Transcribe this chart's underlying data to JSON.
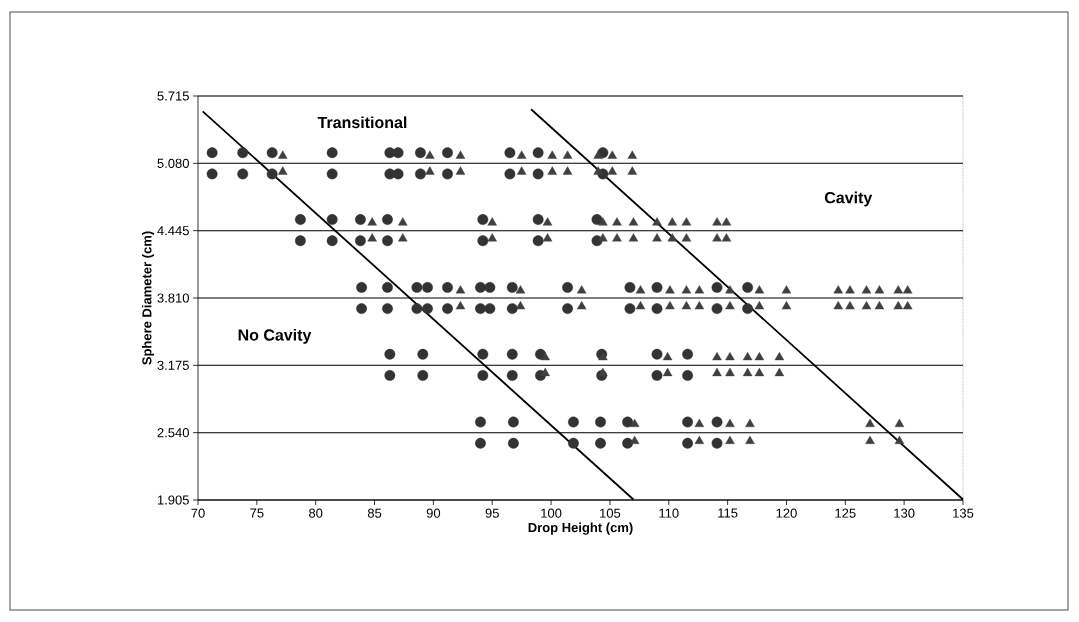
{
  "chart_data": {
    "type": "scatter",
    "xlabel": "Drop Height (cm)",
    "ylabel": "Sphere Diameter (cm)",
    "xlim": [
      70,
      135
    ],
    "xticks": [
      70,
      75,
      80,
      85,
      90,
      95,
      100,
      105,
      110,
      115,
      120,
      125,
      130,
      135
    ],
    "ylim": [
      1.905,
      5.715
    ],
    "yticks": [
      1.905,
      {
        "value": 2.54,
        "label": "2.540"
      },
      3.175,
      {
        "value": 3.81,
        "label": "3.810"
      },
      4.445,
      {
        "value": 5.08,
        "label": "5.080"
      },
      5.715
    ],
    "grid": "y",
    "series": [
      {
        "marker": "circle",
        "color": "#333333",
        "x": [
          71.2,
          71.2,
          73.8,
          73.8,
          76.3,
          76.3,
          81.4,
          81.4,
          86.3,
          86.3,
          87.0,
          87.0,
          88.9,
          88.9,
          91.2,
          91.2,
          96.5,
          96.5,
          98.9,
          98.9,
          104.4,
          104.4,
          78.7,
          78.7,
          81.4,
          81.4,
          83.8,
          83.8,
          86.1,
          86.1,
          94.2,
          94.2,
          98.9,
          98.9,
          103.9,
          103.9,
          83.9,
          83.9,
          86.1,
          86.1,
          88.6,
          88.6,
          89.5,
          89.5,
          91.2,
          91.2,
          94.0,
          94.0,
          94.8,
          94.8,
          96.7,
          96.7,
          101.4,
          101.4,
          106.7,
          106.7,
          109.0,
          109.0,
          114.1,
          114.1,
          116.7,
          116.7,
          86.3,
          86.3,
          89.1,
          89.1,
          94.2,
          94.2,
          96.7,
          96.7,
          99.1,
          99.1,
          104.3,
          104.3,
          109.0,
          109.0,
          111.6,
          111.6,
          94.0,
          94.0,
          96.8,
          96.8,
          101.9,
          101.9,
          104.2,
          104.2,
          106.5,
          106.5,
          111.6,
          111.6,
          114.1,
          114.1
        ],
        "values": [
          5.18,
          4.98,
          5.18,
          4.98,
          5.18,
          4.98,
          5.18,
          4.98,
          5.18,
          4.98,
          5.18,
          4.98,
          5.18,
          4.98,
          5.18,
          4.98,
          5.18,
          4.98,
          5.18,
          4.98,
          5.18,
          4.98,
          4.55,
          4.35,
          4.55,
          4.35,
          4.55,
          4.35,
          4.55,
          4.35,
          4.55,
          4.35,
          4.55,
          4.35,
          4.55,
          4.35,
          3.91,
          3.71,
          3.91,
          3.71,
          3.91,
          3.71,
          3.91,
          3.71,
          3.91,
          3.71,
          3.91,
          3.71,
          3.91,
          3.71,
          3.91,
          3.71,
          3.91,
          3.71,
          3.91,
          3.71,
          3.91,
          3.71,
          3.91,
          3.71,
          3.91,
          3.71,
          3.28,
          3.08,
          3.28,
          3.08,
          3.28,
          3.08,
          3.28,
          3.08,
          3.28,
          3.08,
          3.28,
          3.08,
          3.28,
          3.08,
          3.28,
          3.08,
          2.64,
          2.44,
          2.64,
          2.44,
          2.64,
          2.44,
          2.64,
          2.44,
          2.64,
          2.44,
          2.64,
          2.44,
          2.64,
          2.44
        ]
      },
      {
        "marker": "triangle",
        "color": "#404040",
        "x": [
          77.2,
          77.2,
          89.7,
          89.7,
          92.3,
          92.3,
          97.5,
          97.5,
          100.1,
          100.1,
          101.4,
          101.4,
          104.0,
          104.0,
          105.2,
          105.2,
          106.9,
          106.9,
          84.8,
          84.8,
          87.4,
          87.4,
          95.0,
          95.0,
          99.7,
          99.7,
          104.4,
          104.4,
          105.6,
          105.6,
          107.0,
          107.0,
          109.0,
          109.0,
          110.3,
          110.3,
          111.5,
          111.5,
          114.1,
          114.1,
          114.9,
          114.9,
          92.3,
          92.3,
          97.4,
          97.4,
          102.6,
          102.6,
          107.6,
          107.6,
          110.1,
          110.1,
          111.5,
          111.5,
          112.6,
          112.6,
          115.2,
          115.2,
          117.7,
          117.7,
          120.0,
          120.0,
          124.4,
          124.4,
          125.4,
          125.4,
          126.8,
          126.8,
          127.9,
          127.9,
          129.5,
          129.5,
          130.3,
          130.3,
          99.5,
          99.5,
          104.4,
          104.4,
          109.9,
          109.9,
          114.1,
          114.1,
          115.2,
          115.2,
          116.7,
          116.7,
          117.7,
          117.7,
          119.4,
          119.4,
          107.1,
          107.1,
          112.6,
          112.6,
          115.2,
          115.2,
          116.9,
          116.9,
          127.1,
          127.1,
          129.6,
          129.6
        ],
        "values": [
          5.15,
          5.0,
          5.15,
          5.0,
          5.15,
          5.0,
          5.15,
          5.0,
          5.15,
          5.0,
          5.15,
          5.0,
          5.15,
          5.0,
          5.15,
          5.0,
          5.15,
          5.0,
          4.52,
          4.37,
          4.52,
          4.37,
          4.52,
          4.37,
          4.52,
          4.37,
          4.52,
          4.37,
          4.52,
          4.37,
          4.52,
          4.37,
          4.52,
          4.37,
          4.52,
          4.37,
          4.52,
          4.37,
          4.52,
          4.37,
          4.52,
          4.37,
          3.88,
          3.73,
          3.88,
          3.73,
          3.88,
          3.73,
          3.88,
          3.73,
          3.88,
          3.73,
          3.88,
          3.73,
          3.88,
          3.73,
          3.88,
          3.73,
          3.88,
          3.73,
          3.88,
          3.73,
          3.88,
          3.73,
          3.88,
          3.73,
          3.88,
          3.73,
          3.88,
          3.73,
          3.88,
          3.73,
          3.88,
          3.73,
          3.25,
          3.1,
          3.25,
          3.1,
          3.25,
          3.1,
          3.25,
          3.1,
          3.25,
          3.1,
          3.25,
          3.1,
          3.25,
          3.1,
          3.25,
          3.1,
          2.62,
          2.46,
          2.62,
          2.46,
          2.62,
          2.46,
          2.62,
          2.46,
          2.62,
          2.46,
          2.62,
          2.46
        ]
      },
      {
        "type": "line",
        "marker": "none",
        "color": "#000000",
        "x": [
          70.4,
          107.0
        ],
        "values": [
          5.57,
          1.91
        ]
      },
      {
        "type": "line",
        "marker": "none",
        "color": "#000000",
        "x": [
          98.3,
          135.0
        ],
        "values": [
          5.59,
          1.91
        ]
      }
    ],
    "annotations": [
      "Transitional",
      "Cavity",
      "No Cavity"
    ]
  }
}
